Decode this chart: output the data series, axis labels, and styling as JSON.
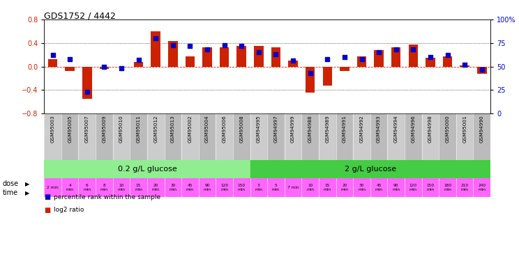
{
  "title": "GDS1752 / 4442",
  "samples": [
    "GSM95003",
    "GSM95005",
    "GSM95007",
    "GSM95009",
    "GSM95010",
    "GSM95011",
    "GSM95012",
    "GSM95013",
    "GSM95002",
    "GSM95004",
    "GSM95006",
    "GSM95008",
    "GSM94995",
    "GSM94997",
    "GSM94999",
    "GSM94988",
    "GSM94989",
    "GSM94991",
    "GSM94992",
    "GSM94993",
    "GSM94994",
    "GSM94996",
    "GSM94998",
    "GSM95000",
    "GSM95001",
    "GSM94990"
  ],
  "log2_ratio": [
    0.12,
    -0.08,
    -0.55,
    -0.04,
    0.0,
    0.08,
    0.6,
    0.43,
    0.17,
    0.33,
    0.33,
    0.35,
    0.35,
    0.33,
    0.1,
    -0.45,
    -0.32,
    -0.08,
    0.17,
    0.28,
    0.33,
    0.38,
    0.15,
    0.17,
    0.02,
    -0.12
  ],
  "percentile_rank": [
    62,
    58,
    23,
    50,
    48,
    57,
    80,
    73,
    72,
    68,
    73,
    72,
    65,
    63,
    56,
    43,
    58,
    60,
    58,
    65,
    68,
    68,
    60,
    62,
    52,
    47
  ],
  "time_labels": [
    "2 min",
    "4\nmin",
    "6\nmin",
    "8\nmin",
    "10\nmin",
    "15\nmin",
    "20\nmin",
    "30\nmin",
    "45\nmin",
    "90\nmin",
    "120\nmin",
    "150\nmin",
    "3\nmin",
    "5\nmin",
    "7 min",
    "10\nmin",
    "15\nmin",
    "20\nmin",
    "30\nmin",
    "45\nmin",
    "90\nmin",
    "120\nmin",
    "150\nmin",
    "180\nmin",
    "210\nmin",
    "240\nmin"
  ],
  "n_samples": 26,
  "ylim": [
    -0.8,
    0.8
  ],
  "ylim_right": [
    0,
    100
  ],
  "yticks_left": [
    -0.8,
    -0.4,
    0.0,
    0.4,
    0.8
  ],
  "yticks_right": [
    0,
    25,
    50,
    75,
    100
  ],
  "bar_color": "#CC2200",
  "dot_color": "#0000CC",
  "background_color": "#ffffff",
  "legend_red": "log2 ratio",
  "legend_blue": "percentile rank within the sample",
  "time_row_color": "#FF66FF",
  "dose_row_color_1": "#90EE90",
  "dose_row_color_2": "#44CC44",
  "label_bg_color": "#CCCCCC"
}
